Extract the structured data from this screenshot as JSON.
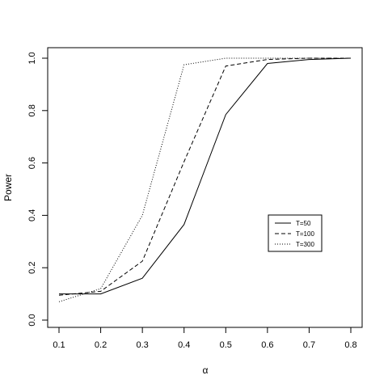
{
  "chart_data": {
    "type": "line",
    "xlabel": "α",
    "ylabel": "Power",
    "xlim": [
      0.1,
      0.8
    ],
    "ylim": [
      0.0,
      1.0
    ],
    "x_ticks": [
      "0.1",
      "0.2",
      "0.3",
      "0.4",
      "0.5",
      "0.6",
      "0.7",
      "0.8"
    ],
    "y_ticks": [
      "0.0",
      "0.2",
      "0.4",
      "0.6",
      "0.8",
      "1.0"
    ],
    "x": [
      0.1,
      0.2,
      0.3,
      0.4,
      0.5,
      0.6,
      0.7,
      0.8
    ],
    "series": [
      {
        "name": "T=50",
        "line_style": "solid",
        "values": [
          0.1,
          0.1,
          0.16,
          0.365,
          0.785,
          0.98,
          0.995,
          1.0
        ]
      },
      {
        "name": "T=100",
        "line_style": "dashed",
        "values": [
          0.095,
          0.11,
          0.225,
          0.605,
          0.97,
          0.995,
          1.0,
          1.0
        ]
      },
      {
        "name": "T=300",
        "line_style": "dotted",
        "values": [
          0.07,
          0.12,
          0.4,
          0.975,
          1.0,
          1.0,
          1.0,
          1.0
        ]
      }
    ],
    "grid": false,
    "legend_position": "center-right"
  }
}
